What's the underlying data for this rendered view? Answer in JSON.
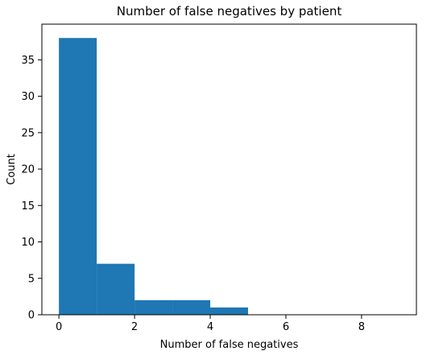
{
  "chart_data": {
    "type": "bar",
    "title": "Number of false negatives by patient",
    "xlabel": "Number of false negatives",
    "ylabel": "Count",
    "bins": [
      {
        "start": 0,
        "end": 1,
        "count": 38
      },
      {
        "start": 1,
        "end": 2,
        "count": 7
      },
      {
        "start": 2,
        "end": 3,
        "count": 2
      },
      {
        "start": 3,
        "end": 4,
        "count": 2
      },
      {
        "start": 4,
        "end": 5,
        "count": 1
      },
      {
        "start": 5,
        "end": 6,
        "count": 0
      },
      {
        "start": 6,
        "end": 7,
        "count": 0
      },
      {
        "start": 7,
        "end": 8,
        "count": 0
      },
      {
        "start": 8,
        "end": 9,
        "count": 0
      }
    ],
    "xlim": [
      -0.45,
      9.45
    ],
    "ylim": [
      0,
      39.9
    ],
    "xticks": [
      0,
      2,
      4,
      6,
      8
    ],
    "yticks": [
      0,
      5,
      10,
      15,
      20,
      25,
      30,
      35
    ],
    "grid": false,
    "legend": "none",
    "bar_color": "#1f77b4"
  }
}
